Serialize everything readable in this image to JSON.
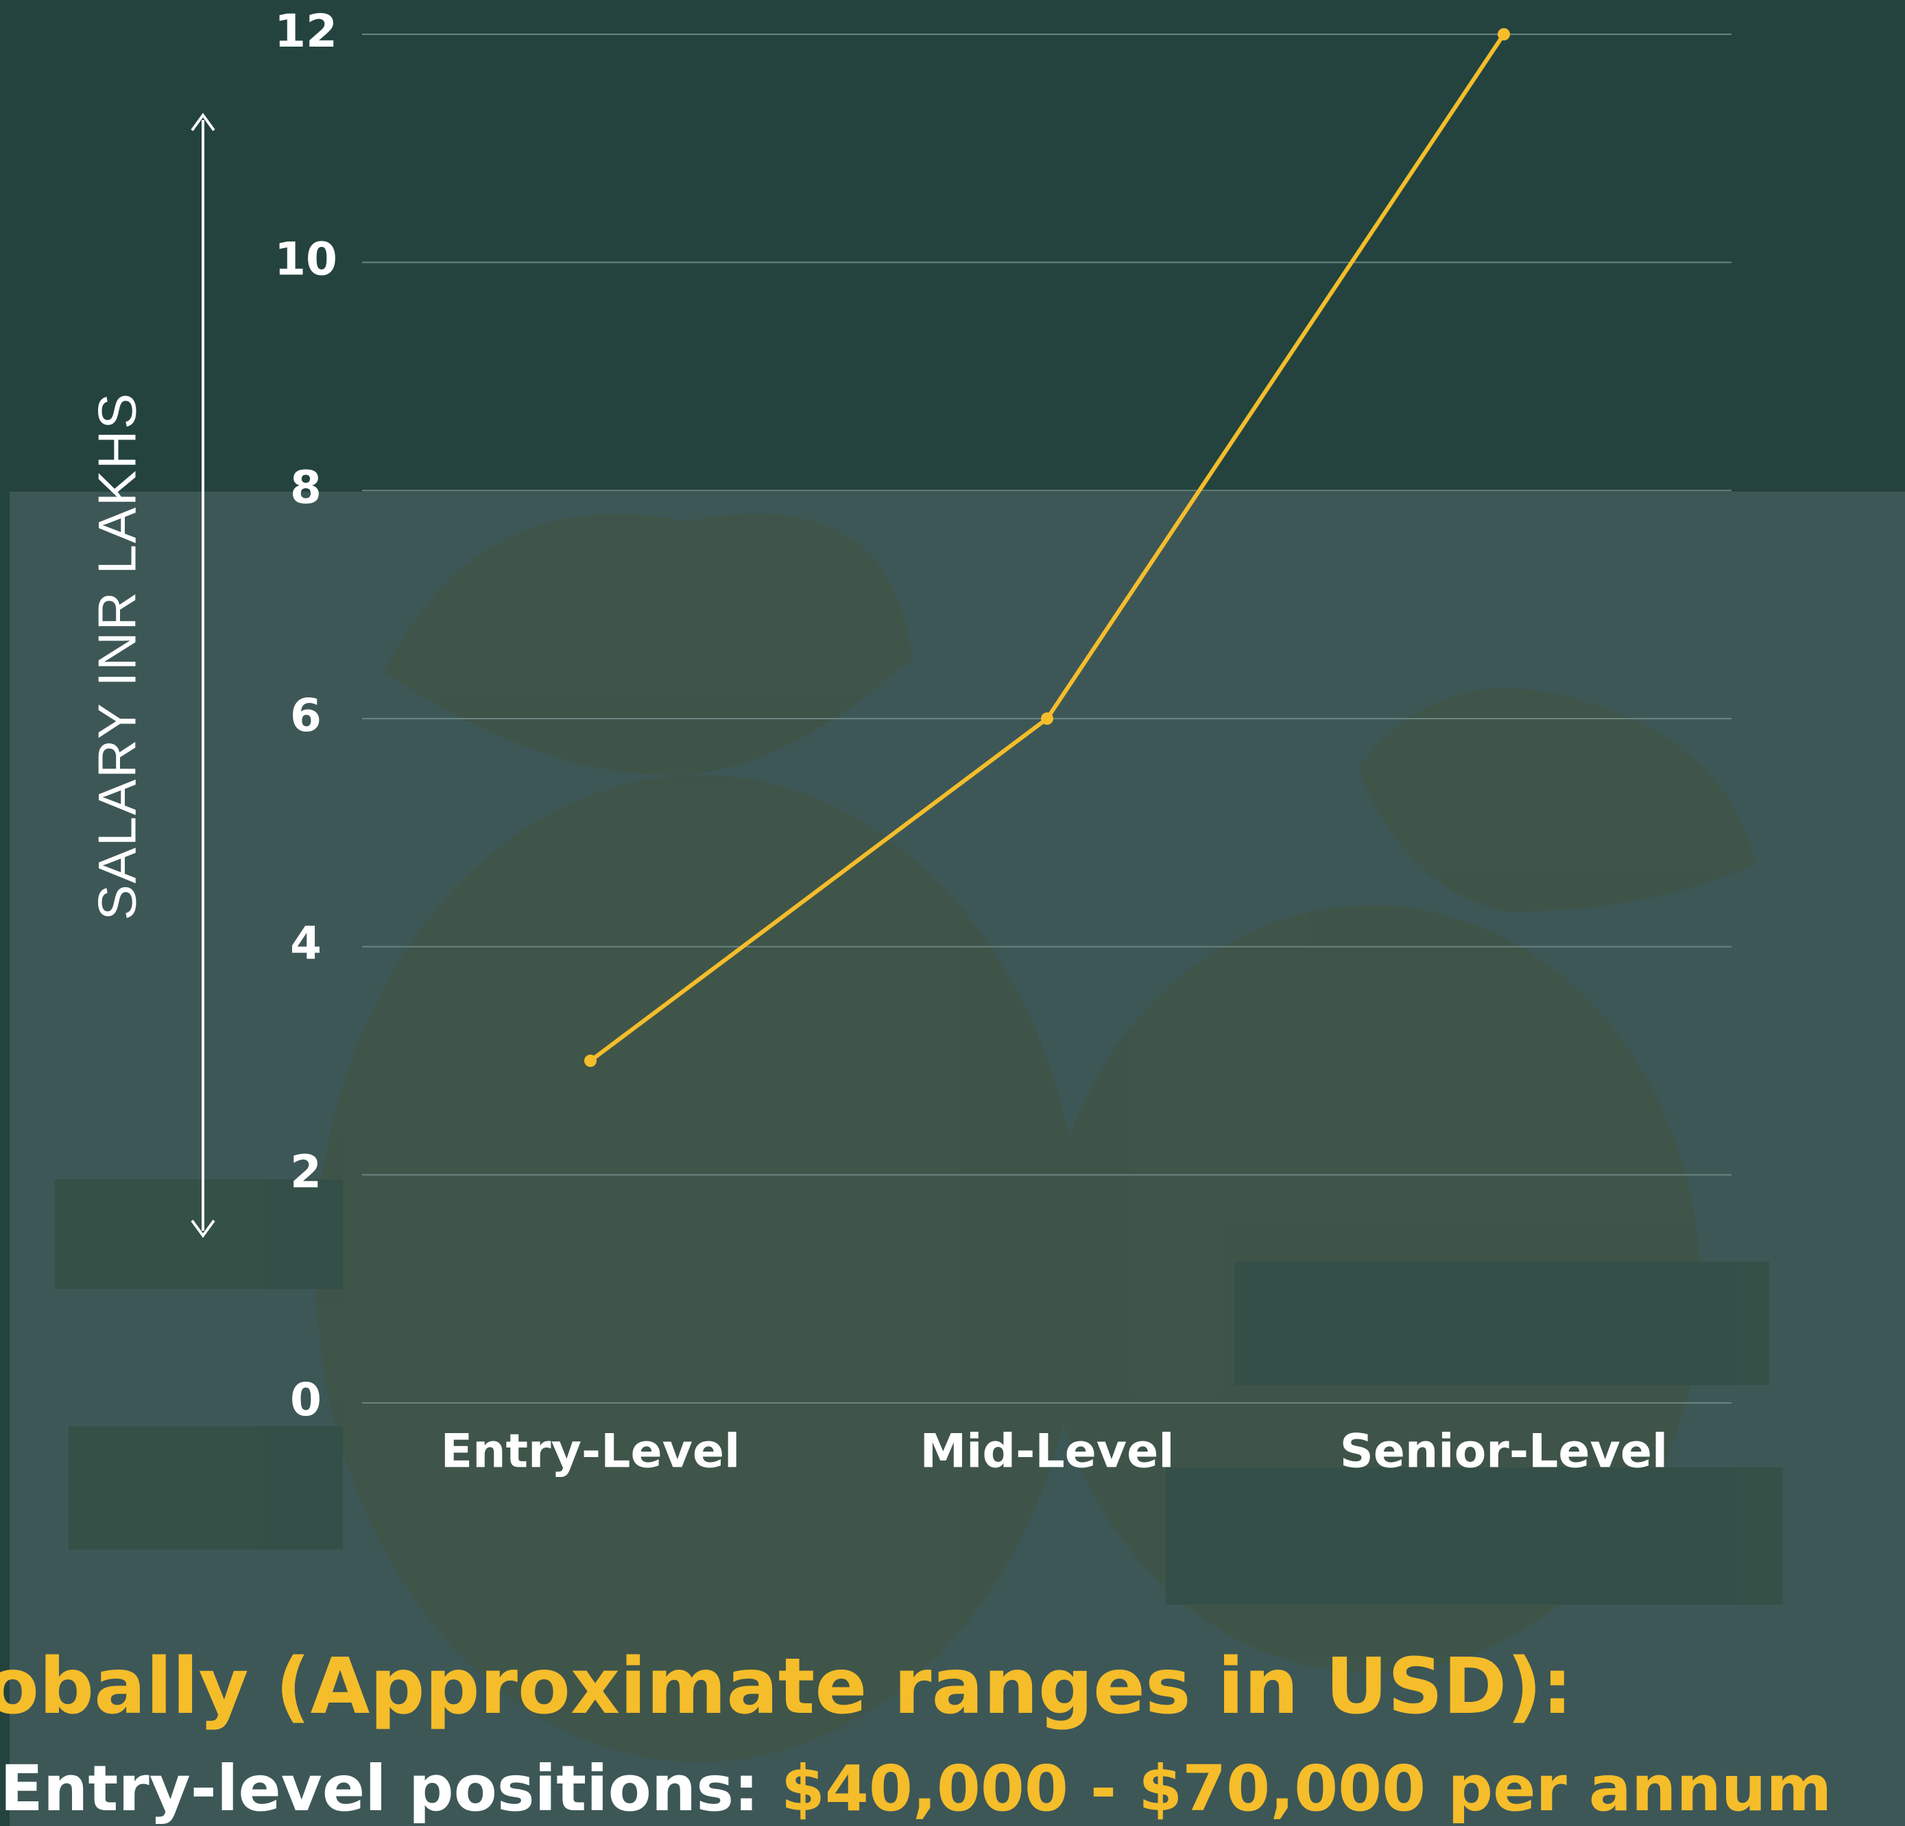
{
  "chart_data": {
    "type": "line",
    "y_label": "SALARY INR LAKHS",
    "categories": [
      "Entry-Level",
      "Mid-Level",
      "Senior-Level"
    ],
    "values": [
      3,
      6,
      12
    ],
    "color": "#f5bd2a",
    "ylim": [
      0,
      12
    ],
    "yticks": [
      0,
      2,
      4,
      6,
      8,
      10,
      12
    ],
    "grid": true
  },
  "footer": {
    "heading": "obally (Approximate ranges in USD):",
    "line_label": "Entry-level positions:",
    "line_value": "$40,000 - $70,000 per annum"
  }
}
